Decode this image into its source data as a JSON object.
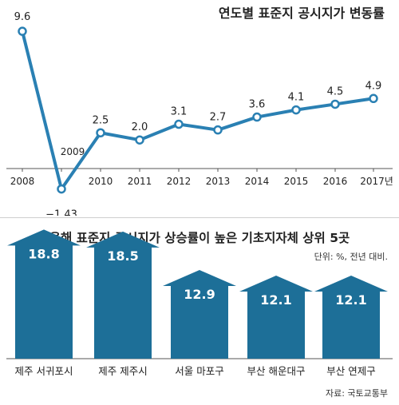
{
  "chart_data": [
    {
      "type": "line",
      "title": "연도별 표준지 공시지가 변동률",
      "x": [
        "2008",
        "2009",
        "2010",
        "2011",
        "2012",
        "2013",
        "2014",
        "2015",
        "2016",
        "2017년"
      ],
      "values": [
        9.6,
        -1.43,
        2.5,
        2.0,
        3.1,
        2.7,
        3.6,
        4.1,
        4.5,
        4.9
      ],
      "value_labels": [
        "9.6",
        "−1.43",
        "2.5",
        "2.0",
        "3.1",
        "2.7",
        "3.6",
        "4.1",
        "4.5",
        "4.9"
      ],
      "ylim": [
        -2,
        10.5
      ],
      "grid": false
    },
    {
      "type": "bar",
      "title": "올해 표준지 공시지가 상승률이 높은 기초지자체 상위 5곳",
      "unit_note": "단위: %, 전년 대비.",
      "categories": [
        "제주 서귀포시",
        "제주 제주시",
        "서울 마포구",
        "부산 해운대구",
        "부산 연제구"
      ],
      "values": [
        18.8,
        18.5,
        12.9,
        12.1,
        12.1
      ],
      "value_labels": [
        "18.8",
        "18.5",
        "12.9",
        "12.1",
        "12.1"
      ],
      "source": "자료: 국토교통부"
    }
  ],
  "colors": {
    "line": "#2a80b3",
    "marker_fill": "#ffffff",
    "arrow": "#1d6f98",
    "bar_value_text": "#ffffff",
    "axis": "#555555"
  }
}
